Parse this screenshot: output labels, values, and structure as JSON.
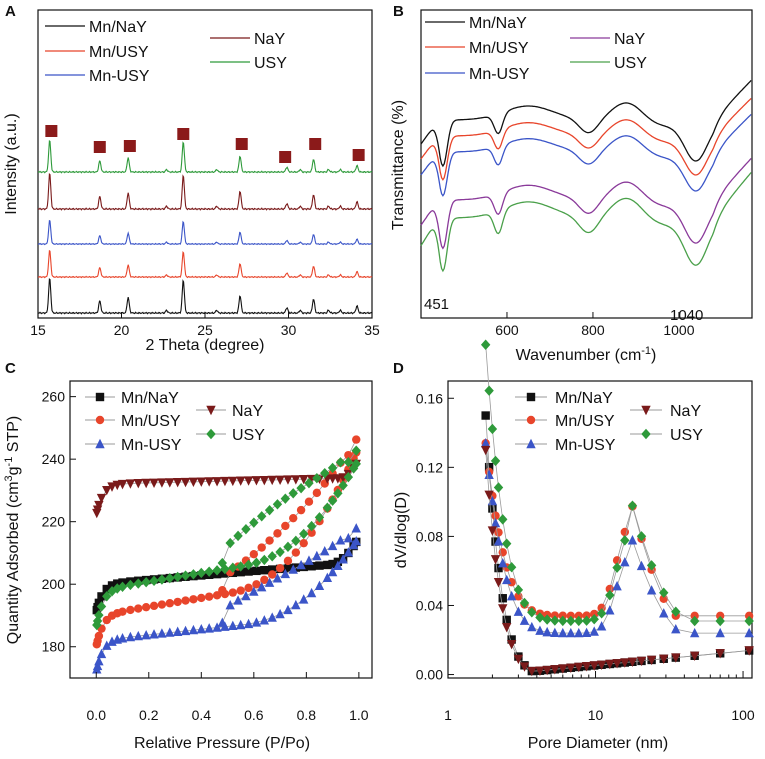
{
  "figure": {
    "panel_labels": [
      "A",
      "B",
      "C",
      "D"
    ]
  },
  "colors": {
    "Mn/NaY": "#111111",
    "Mn/USY": "#e8452b",
    "Mn-USY": "#3b55c8",
    "NaY": "#7a1a1a",
    "USY": "#2e9a3a",
    "NaY_ir": "#8a3a9a",
    "USY_ir": "#4aa04a",
    "marker_square": "#8b1a1a"
  },
  "chart_data": [
    {
      "panel": "A",
      "type": "line",
      "title": "",
      "xlabel": "2 Theta (degree)",
      "ylabel": "Intensity (a.u.)",
      "xlim": [
        15,
        35
      ],
      "xticks": [
        "15",
        "20",
        "25",
        "30",
        "35"
      ],
      "legend": [
        "Mn/NaY",
        "Mn/USY",
        "Mn-USY",
        "NaY",
        "USY"
      ],
      "series_order_top_to_bottom": [
        "USY",
        "NaY",
        "Mn-USY",
        "Mn/USY",
        "Mn/NaY"
      ],
      "peaks_2theta": [
        15.7,
        18.7,
        20.4,
        23.7,
        27.1,
        29.9,
        31.5,
        34.1
      ],
      "peak_heights": [
        1.0,
        0.35,
        0.45,
        0.95,
        0.5,
        0.15,
        0.4,
        0.2
      ],
      "marked_peaks": [
        15.8,
        18.7,
        20.5,
        23.7,
        27.2,
        29.8,
        31.6,
        34.2
      ]
    },
    {
      "panel": "B",
      "type": "line",
      "xlabel": "Wavenumber (cm",
      "xlabel_sup": "-1",
      "xlabel_end": ")",
      "ylabel": "Transmittance (%)",
      "xlim": [
        400,
        1170
      ],
      "xticks": [
        "600",
        "800",
        "1000"
      ],
      "xtick_values": [
        600,
        800,
        1000
      ],
      "legend": [
        "Mn/NaY",
        "Mn/USY",
        "Mn-USY",
        "NaY",
        "USY"
      ],
      "annotations": [
        "451",
        "1040"
      ]
    },
    {
      "panel": "C",
      "type": "scatter",
      "xlabel": "Relative Pressure (P/Po)",
      "ylabel": "Quantity Adsorbed (cm",
      "ylabel_sup": "3",
      "ylabel_mid": "g",
      "ylabel_sup2": "-1",
      "ylabel_end": " STP)",
      "xlim": [
        -0.1,
        1.05
      ],
      "ylim": [
        170,
        265
      ],
      "xticks": [
        "0.0",
        "0.2",
        "0.4",
        "0.6",
        "0.8",
        "1.0"
      ],
      "xtick_values": [
        0,
        0.2,
        0.4,
        0.6,
        0.8,
        1.0
      ],
      "yticks": [
        "180",
        "200",
        "220",
        "240",
        "260"
      ],
      "ytick_values": [
        180,
        200,
        220,
        240,
        260
      ],
      "legend": [
        "Mn/NaY",
        "Mn/USY",
        "Mn-USY",
        "NaY",
        "USY"
      ]
    },
    {
      "panel": "D",
      "type": "scatter",
      "xlabel": "Pore Diameter (nm)",
      "ylabel": "dV/dlog(D)",
      "xscale": "log",
      "xlim": [
        1,
        115
      ],
      "ylim": [
        -0.002,
        0.17
      ],
      "xticks": [
        "1",
        "10",
        "100"
      ],
      "xtick_values": [
        1,
        10,
        100
      ],
      "yticks": [
        "0.00",
        "0.04",
        "0.08",
        "0.12",
        "0.16"
      ],
      "ytick_values": [
        0,
        0.04,
        0.08,
        0.12,
        0.16
      ],
      "legend": [
        "Mn/NaY",
        "Mn/USY",
        "Mn-USY",
        "NaY",
        "USY"
      ]
    }
  ]
}
